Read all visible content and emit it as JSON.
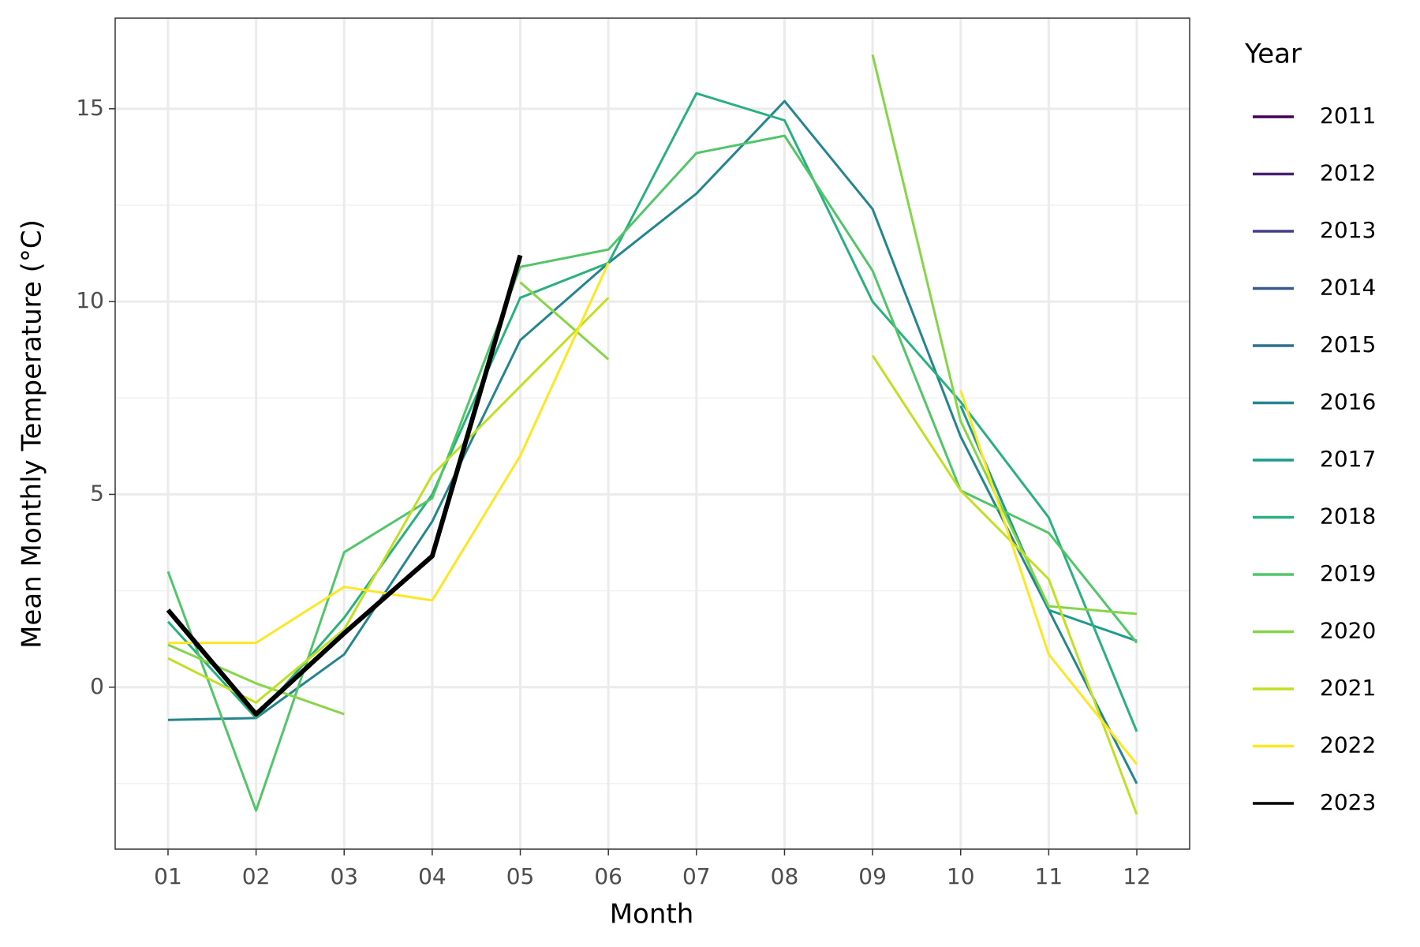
{
  "chart_data": {
    "type": "line",
    "x_label": "Month",
    "y_label": "Mean Monthly Temperature (°C)",
    "legend_title": "Year",
    "categories": [
      "01",
      "02",
      "03",
      "04",
      "05",
      "06",
      "07",
      "08",
      "09",
      "10",
      "11",
      "12"
    ],
    "ylim": [
      -4.2,
      17.35
    ],
    "yticks": [
      0,
      5,
      10,
      15
    ],
    "y_minor_ticks": [
      -2.5,
      2.5,
      7.5,
      12.5
    ],
    "grid": true,
    "legend": "right",
    "series": [
      {
        "name": "2011",
        "color": "#440154",
        "values": [
          null,
          null,
          null,
          null,
          null,
          null,
          null,
          null,
          null,
          null,
          null,
          null
        ]
      },
      {
        "name": "2012",
        "color": "#482173",
        "values": [
          null,
          null,
          null,
          null,
          null,
          null,
          null,
          null,
          null,
          null,
          null,
          null
        ]
      },
      {
        "name": "2013",
        "color": "#433e85",
        "values": [
          null,
          null,
          null,
          null,
          null,
          null,
          null,
          null,
          null,
          null,
          null,
          null
        ]
      },
      {
        "name": "2014",
        "color": "#38598c",
        "values": [
          null,
          null,
          null,
          null,
          null,
          null,
          null,
          null,
          null,
          null,
          null,
          null
        ]
      },
      {
        "name": "2015",
        "color": "#2d708e",
        "values": [
          null,
          null,
          null,
          null,
          null,
          null,
          null,
          null,
          null,
          null,
          null,
          null
        ]
      },
      {
        "name": "2016",
        "color": "#25858e",
        "values": [
          -0.85,
          -0.8,
          0.85,
          4.3,
          9.0,
          11.0,
          12.8,
          15.2,
          12.4,
          6.5,
          2.0,
          -2.5
        ]
      },
      {
        "name": "2017",
        "color": "#1e9b8a",
        "values": [
          null,
          null,
          null,
          null,
          null,
          null,
          null,
          null,
          null,
          7.3,
          2.0,
          1.2
        ]
      },
      {
        "name": "2018",
        "color": "#2ab07f",
        "values": [
          1.7,
          -0.8,
          1.8,
          5.0,
          10.1,
          11.0,
          15.4,
          14.7,
          10.0,
          7.4,
          4.4,
          -1.15
        ]
      },
      {
        "name": "2019",
        "color": "#52c569",
        "values": [
          3.0,
          -3.2,
          3.5,
          4.9,
          10.9,
          11.35,
          13.85,
          14.3,
          10.8,
          5.1,
          4.0,
          1.15
        ]
      },
      {
        "name": "2020",
        "color": "#86d549",
        "values": [
          1.1,
          0.1,
          -0.7,
          null,
          10.5,
          8.5,
          null,
          null,
          16.4,
          6.9,
          2.1,
          1.9
        ]
      },
      {
        "name": "2021",
        "color": "#c2df23",
        "values": [
          0.75,
          -0.4,
          1.5,
          5.5,
          7.8,
          10.1,
          null,
          null,
          8.6,
          5.1,
          2.8,
          -3.3
        ]
      },
      {
        "name": "2022",
        "color": "#fde725",
        "values": [
          1.15,
          1.15,
          2.6,
          2.25,
          6.0,
          11.0,
          null,
          null,
          null,
          7.7,
          0.85,
          -2.0
        ]
      },
      {
        "name": "2023",
        "color": "#000000",
        "values": [
          2.0,
          -0.7,
          1.4,
          3.4,
          11.2,
          null,
          null,
          null,
          null,
          null,
          null,
          null
        ]
      }
    ]
  }
}
